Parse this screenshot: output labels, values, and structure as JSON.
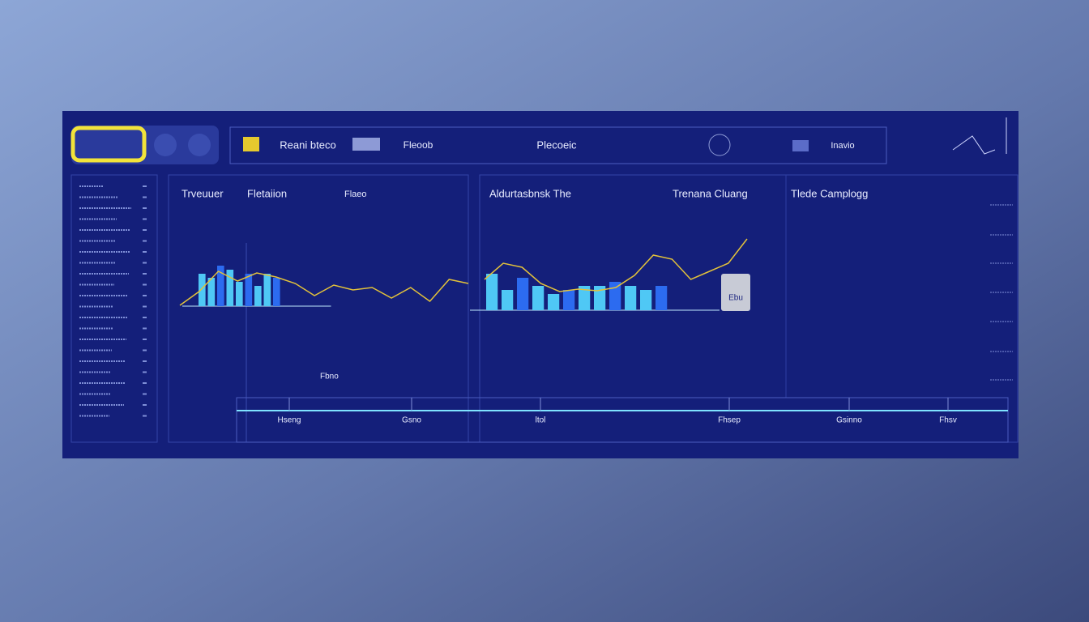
{
  "header": {
    "nav": [
      "Reani bteco",
      "Fleoob",
      "Plecoeic",
      "Inavio"
    ]
  },
  "panels": [
    {
      "title": "Trveuuer",
      "subtitle": "Fletaiion",
      "tag": "Flaeo",
      "note": "Fbno",
      "bars": [
        40,
        35,
        50,
        45,
        30,
        40,
        25,
        40,
        35
      ],
      "line": [
        3,
        20,
        45,
        33,
        43,
        38,
        30,
        15,
        28,
        22,
        25,
        12,
        25,
        8,
        35,
        30
      ]
    },
    {
      "title": "Aldurtasbnsk The",
      "subtitle": "Trenana Cluang",
      "tag": "Tlede Camplogg",
      "badge": "Ebu",
      "bars": [
        45,
        25,
        40,
        30,
        20,
        25,
        30,
        30,
        35,
        30,
        25,
        30
      ],
      "line": [
        40,
        60,
        55,
        35,
        25,
        28,
        26,
        30,
        45,
        70,
        65,
        40,
        50,
        60,
        90
      ]
    }
  ],
  "timeline": [
    "Hseng",
    "Gsno",
    "ltol",
    "Fhsep",
    "Gsinno",
    "Fhsv"
  ]
}
